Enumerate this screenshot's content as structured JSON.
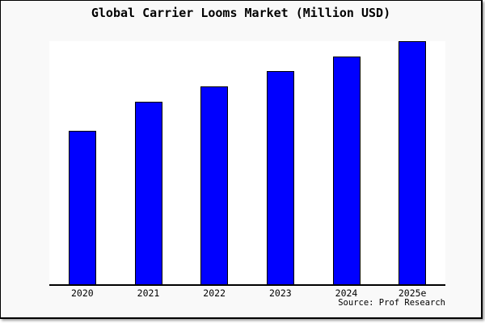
{
  "window": {
    "background": "#f9f9f9",
    "plot_background": "#ffffff",
    "border_color": "#000000"
  },
  "chart_data": {
    "type": "bar",
    "title": "Global Carrier Looms Market (Million USD)",
    "categories": [
      "2020",
      "2021",
      "2022",
      "2023",
      "2024",
      "2025e"
    ],
    "values": [
      63,
      75.2,
      81.4,
      87.7,
      93.7,
      100
    ],
    "values_note": "relative bar heights as % of tallest bar; y-axis has no visible scale or tick labels",
    "xlabel": "",
    "ylabel": "",
    "ylim": [
      0,
      100
    ],
    "grid": false,
    "legend": false,
    "y_axis_visible": false,
    "bar_color": "#0000ff",
    "bar_border_color": "#000000",
    "source": "Source: Prof Research"
  }
}
